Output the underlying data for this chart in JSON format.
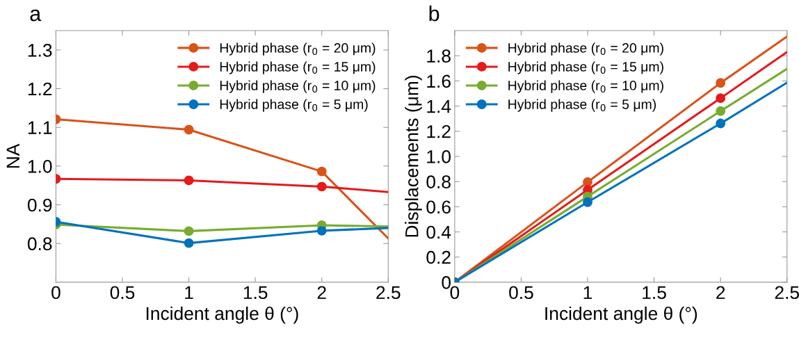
{
  "chart_data": [
    {
      "type": "line",
      "title": "a",
      "xlabel": "Incident angle θ (°)",
      "ylabel": "NA",
      "xlim": [
        0,
        2.5
      ],
      "xticks": [
        0,
        0.5,
        1,
        1.5,
        2,
        2.5
      ],
      "ylim": [
        0.7,
        1.35
      ],
      "yticks": [
        0.8,
        0.9,
        {
          "value": 1,
          "label": "1.0"
        },
        1.1,
        1.2,
        1.3
      ],
      "grid": false,
      "legend": "top right",
      "marker": "circle",
      "line_style": "solid",
      "series": [
        {
          "name": "Hybrid phase (r$_{0}$ = 20 μm)",
          "color": "#d95319",
          "x": [
            0,
            1,
            2
          ],
          "values": [
            1.121,
            1.094,
            0.986
          ]
        },
        {
          "name": "Hybrid phase (r$_{0}$ = 15 μm)",
          "color": "#e41a1c",
          "x": [
            0,
            1,
            2
          ],
          "values": [
            0.967,
            0.963,
            0.947
          ]
        },
        {
          "name": "Hybrid phase (r$_{0}$ = 10 μm)",
          "color": "#77ac30",
          "x": [
            0,
            1,
            2
          ],
          "values": [
            0.849,
            0.832,
            0.847
          ]
        },
        {
          "name": "Hybrid phase (r$_{0}$ = 5 μm)",
          "color": "#0072bd",
          "x": [
            0,
            1,
            2
          ],
          "values": [
            0.856,
            0.801,
            0.833
          ]
        },
        {
          "color": "#d95319",
          "marker": "none",
          "x": [
            2,
            2.5
          ],
          "values": [
            0.986,
            0.813
          ]
        },
        {
          "color": "#e41a1c",
          "marker": "none",
          "x": [
            2,
            2.5
          ],
          "values": [
            0.947,
            0.933
          ]
        },
        {
          "color": "#77ac30",
          "marker": "none",
          "x": [
            2,
            2.5
          ],
          "values": [
            0.847,
            0.844
          ]
        },
        {
          "color": "#0072bd",
          "marker": "none",
          "x": [
            2,
            2.5
          ],
          "values": [
            0.833,
            0.84
          ]
        }
      ]
    },
    {
      "type": "line",
      "title": "b",
      "xlabel": "Incident angle θ (°)",
      "ylabel": "Displacements (μm)",
      "xlim": [
        0,
        2.5
      ],
      "xticks": [
        0,
        0.5,
        1,
        1.5,
        2,
        2.5
      ],
      "ylim": [
        0,
        2.0
      ],
      "yticks": [
        0,
        0.2,
        0.4,
        0.6,
        0.8,
        {
          "value": 1,
          "label": "1.0"
        },
        1.2,
        1.4,
        1.6,
        1.8
      ],
      "grid": false,
      "legend": "top left",
      "marker": "circle",
      "line_style": "solid",
      "series": [
        {
          "name": "Hybrid phase (r$_{0}$ = 20 μm)",
          "color": "#d95319",
          "x": [
            0,
            1,
            2
          ],
          "values": [
            0,
            0.796,
            1.584
          ]
        },
        {
          "name": "Hybrid phase (r$_{0}$ = 15 μm)",
          "color": "#e41a1c",
          "x": [
            0,
            1,
            2
          ],
          "values": [
            0,
            0.734,
            1.463
          ]
        },
        {
          "name": "Hybrid phase (r$_{0}$ = 10 μm)",
          "color": "#77ac30",
          "x": [
            0,
            1,
            2
          ],
          "values": [
            0,
            0.681,
            1.36
          ]
        },
        {
          "name": "Hybrid phase (r$_{0}$ = 5 μm)",
          "color": "#0072bd",
          "x": [
            0,
            1,
            2
          ],
          "values": [
            0,
            0.636,
            1.262
          ]
        },
        {
          "color": "#d95319",
          "marker": "none",
          "x": [
            2,
            2.5
          ],
          "values": [
            1.584,
            1.953
          ]
        },
        {
          "color": "#e41a1c",
          "marker": "none",
          "x": [
            2,
            2.5
          ],
          "values": [
            1.463,
            1.83
          ]
        },
        {
          "color": "#77ac30",
          "marker": "none",
          "x": [
            2,
            2.5
          ],
          "values": [
            1.36,
            1.696
          ]
        },
        {
          "color": "#0072bd",
          "marker": "none",
          "x": [
            2,
            2.5
          ],
          "values": [
            1.262,
            1.586
          ]
        }
      ]
    }
  ]
}
